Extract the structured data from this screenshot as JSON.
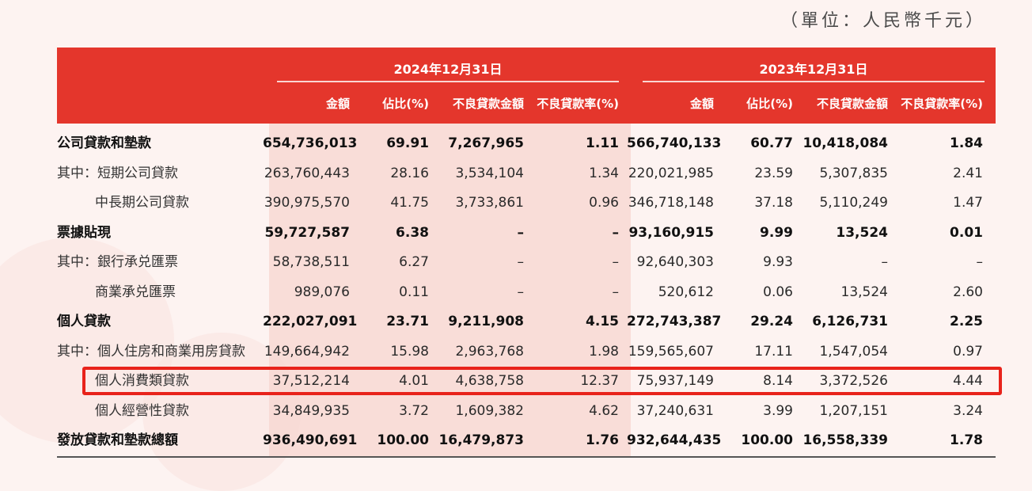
{
  "unit_label": "（單位：人民幣千元）",
  "years": [
    "2024年12月31日",
    "2023年12月31日"
  ],
  "column_headers": [
    "金額",
    "佔比(%)",
    "不良貸款金額",
    "不良貸款率(%)"
  ],
  "rows": [
    {
      "label": "公司貸款和墊款",
      "bold": true,
      "v": [
        "654,736,013",
        "69.91",
        "7,267,965",
        "1.11",
        "566,740,133",
        "60.77",
        "10,418,084",
        "1.84"
      ]
    },
    {
      "label": "其中：短期公司貸款",
      "bold": false,
      "v": [
        "263,760,443",
        "28.16",
        "3,534,104",
        "1.34",
        "220,021,985",
        "23.59",
        "5,307,835",
        "2.41"
      ]
    },
    {
      "label": "中長期公司貸款",
      "bold": false,
      "indent": true,
      "v": [
        "390,975,570",
        "41.75",
        "3,733,861",
        "0.96",
        "346,718,148",
        "37.18",
        "5,110,249",
        "1.47"
      ]
    },
    {
      "label": "票據貼現",
      "bold": true,
      "v": [
        "59,727,587",
        "6.38",
        "–",
        "–",
        "93,160,915",
        "9.99",
        "13,524",
        "0.01"
      ]
    },
    {
      "label": "其中：銀行承兑匯票",
      "bold": false,
      "v": [
        "58,738,511",
        "6.27",
        "–",
        "–",
        "92,640,303",
        "9.93",
        "–",
        "–"
      ]
    },
    {
      "label": "商業承兑匯票",
      "bold": false,
      "indent": true,
      "v": [
        "989,076",
        "0.11",
        "–",
        "–",
        "520,612",
        "0.06",
        "13,524",
        "2.60"
      ]
    },
    {
      "label": "個人貸款",
      "bold": true,
      "v": [
        "222,027,091",
        "23.71",
        "9,211,908",
        "4.15",
        "272,743,387",
        "29.24",
        "6,126,731",
        "2.25"
      ]
    },
    {
      "label": "其中：個人住房和商業用房貸款",
      "bold": false,
      "v": [
        "149,664,942",
        "15.98",
        "2,963,768",
        "1.98",
        "159,565,607",
        "17.11",
        "1,547,054",
        "0.97"
      ]
    },
    {
      "label": "個人消費類貸款",
      "bold": false,
      "indent": true,
      "v": [
        "37,512,214",
        "4.01",
        "4,638,758",
        "12.37",
        "75,937,149",
        "8.14",
        "3,372,526",
        "4.44"
      ]
    },
    {
      "label": "個人經營性貸款",
      "bold": false,
      "indent": true,
      "v": [
        "34,849,935",
        "3.72",
        "1,609,382",
        "4.62",
        "37,240,631",
        "3.99",
        "1,207,151",
        "3.24"
      ]
    },
    {
      "label": "發放貸款和墊款總額",
      "bold": true,
      "v": [
        "936,490,691",
        "100.00",
        "16,479,873",
        "1.76",
        "932,644,435",
        "100.00",
        "16,558,339",
        "1.78"
      ]
    }
  ]
}
